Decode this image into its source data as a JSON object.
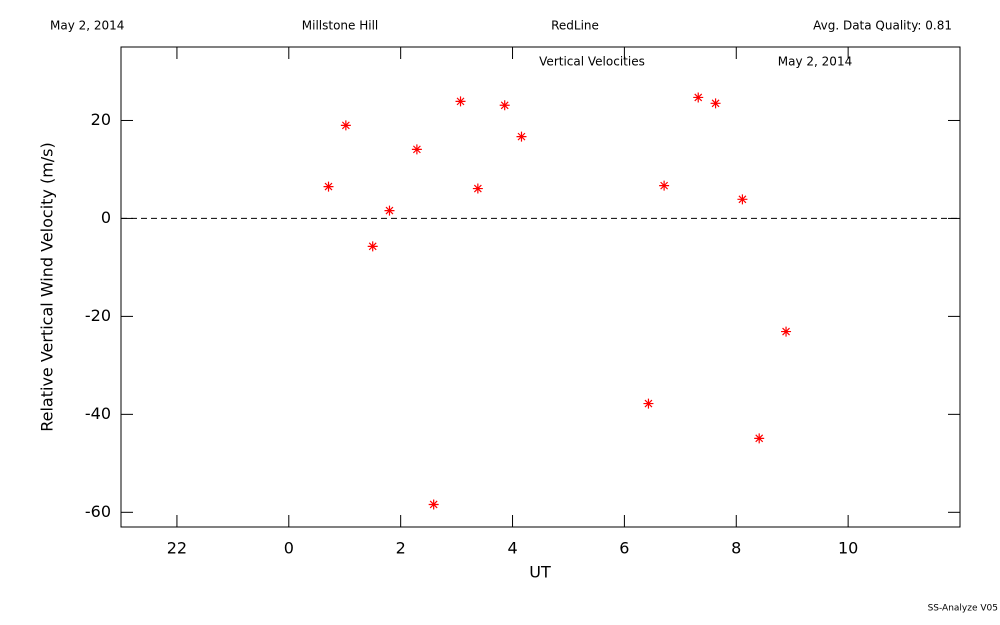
{
  "chart_data": {
    "type": "scatter",
    "header": [
      "May 2, 2014",
      "Millstone Hill",
      "RedLine",
      "Avg. Data Quality: 0.81"
    ],
    "title": "Vertical Velocities",
    "subtitle": "May 2, 2014",
    "x_label": "UT",
    "y_label": "Relative Vertical Wind Velocity (m/s)",
    "footer": "SS-Analyze V05",
    "color": "#ff0000",
    "x": [
      0.71,
      1.02,
      1.5,
      1.8,
      2.29,
      2.59,
      3.07,
      3.38,
      3.86,
      4.16,
      6.43,
      6.71,
      7.32,
      7.63,
      8.11,
      8.41,
      8.89
    ],
    "values": [
      6.5,
      19.0,
      -5.7,
      1.6,
      14.1,
      -58.4,
      23.9,
      6.1,
      23.1,
      16.7,
      -37.8,
      6.7,
      24.7,
      23.5,
      3.9,
      -44.9,
      -23.1
    ],
    "xlim": [
      -3,
      12
    ],
    "ylim": [
      -63,
      35
    ],
    "xticks": [
      {
        "value": -2,
        "label": "22"
      },
      0,
      2,
      4,
      6,
      8,
      10
    ],
    "yticks": [
      -60,
      -40,
      -20,
      0,
      20
    ],
    "reference_line": 0
  }
}
